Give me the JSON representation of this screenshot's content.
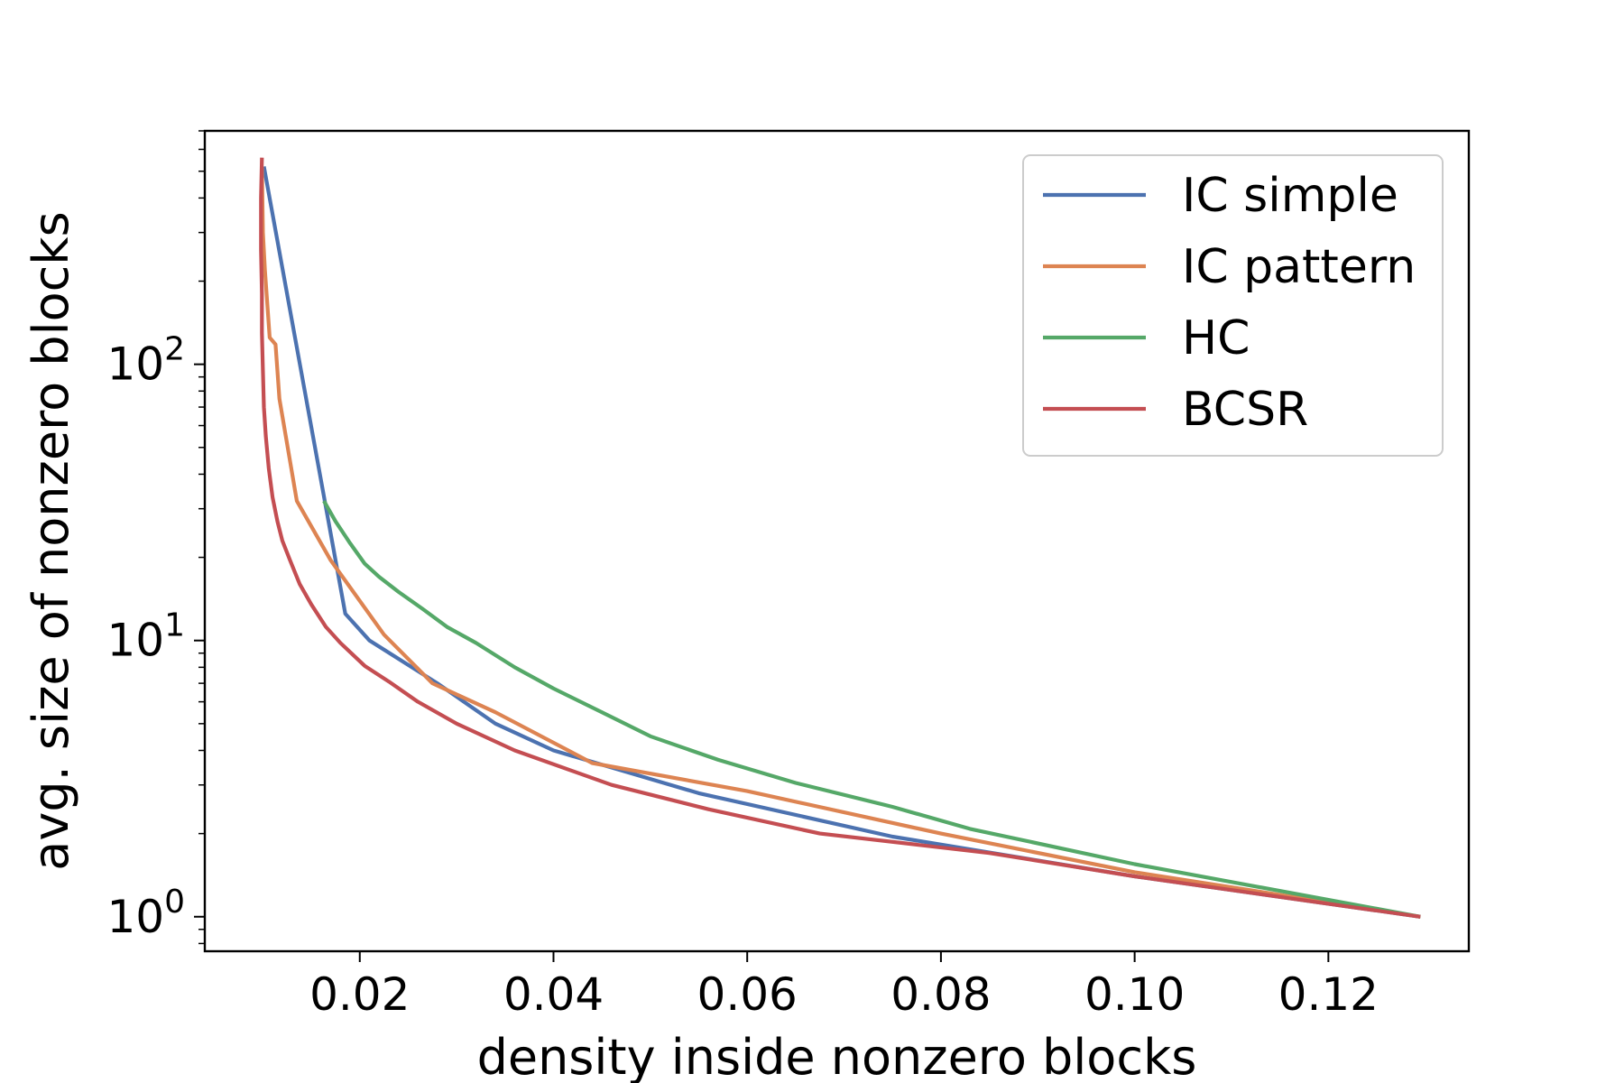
{
  "chart_data": {
    "type": "line",
    "title": "",
    "xlabel": "density inside nonzero blocks",
    "ylabel": "avg. size of nonzero blocks",
    "xscale": "linear",
    "yscale": "log",
    "xlim": [
      0.004,
      0.1345
    ],
    "ylim": [
      0.75,
      700
    ],
    "x_ticks": [
      {
        "value": 0.02,
        "label": "0.02"
      },
      {
        "value": 0.04,
        "label": "0.04"
      },
      {
        "value": 0.06,
        "label": "0.06"
      },
      {
        "value": 0.08,
        "label": "0.08"
      },
      {
        "value": 0.1,
        "label": "0.10"
      },
      {
        "value": 0.12,
        "label": "0.12"
      }
    ],
    "y_ticks": [
      {
        "value": 1,
        "base": "10",
        "exp": "0"
      },
      {
        "value": 10,
        "base": "10",
        "exp": "1"
      },
      {
        "value": 100,
        "base": "10",
        "exp": "2"
      }
    ],
    "grid": false,
    "legend_position": "top-right",
    "series": [
      {
        "name": "IC simple",
        "color": "#4c72b0",
        "points": [
          [
            0.0101,
            520
          ],
          [
            0.0185,
            12.5
          ],
          [
            0.021,
            10
          ],
          [
            0.028,
            7
          ],
          [
            0.034,
            5
          ],
          [
            0.04,
            4
          ],
          [
            0.055,
            2.8
          ],
          [
            0.075,
            1.95
          ],
          [
            0.1,
            1.4
          ],
          [
            0.1295,
            1.0
          ]
        ]
      },
      {
        "name": "IC pattern",
        "color": "#dd8452",
        "points": [
          [
            0.0099,
            520
          ],
          [
            0.01,
            300
          ],
          [
            0.0102,
            220
          ],
          [
            0.0107,
            125
          ],
          [
            0.0113,
            118
          ],
          [
            0.0117,
            75
          ],
          [
            0.0135,
            32
          ],
          [
            0.017,
            19.5
          ],
          [
            0.0225,
            10.5
          ],
          [
            0.0275,
            7.0
          ],
          [
            0.034,
            5.5
          ],
          [
            0.044,
            3.6
          ],
          [
            0.06,
            2.85
          ],
          [
            0.08,
            2.0
          ],
          [
            0.1,
            1.45
          ],
          [
            0.1295,
            1.0
          ]
        ]
      },
      {
        "name": "HC",
        "color": "#55a868",
        "points": [
          [
            0.0163,
            32
          ],
          [
            0.0175,
            27
          ],
          [
            0.019,
            22.5
          ],
          [
            0.0205,
            19
          ],
          [
            0.022,
            17
          ],
          [
            0.024,
            15
          ],
          [
            0.0265,
            13
          ],
          [
            0.029,
            11.2
          ],
          [
            0.032,
            9.8
          ],
          [
            0.036,
            8.0
          ],
          [
            0.04,
            6.7
          ],
          [
            0.045,
            5.5
          ],
          [
            0.05,
            4.5
          ],
          [
            0.057,
            3.7
          ],
          [
            0.065,
            3.05
          ],
          [
            0.075,
            2.5
          ],
          [
            0.083,
            2.08
          ],
          [
            0.1,
            1.55
          ],
          [
            0.1295,
            1.0
          ]
        ]
      },
      {
        "name": "BCSR",
        "color": "#c44e52",
        "points": [
          [
            0.0099,
            560
          ],
          [
            0.0098,
            400
          ],
          [
            0.0098,
            260
          ],
          [
            0.0099,
            180
          ],
          [
            0.0099,
            130
          ],
          [
            0.01,
            95
          ],
          [
            0.0101,
            70
          ],
          [
            0.0103,
            55
          ],
          [
            0.0106,
            42
          ],
          [
            0.011,
            33
          ],
          [
            0.0115,
            27
          ],
          [
            0.012,
            23
          ],
          [
            0.0128,
            19.5
          ],
          [
            0.0138,
            16
          ],
          [
            0.015,
            13.5
          ],
          [
            0.0165,
            11.2
          ],
          [
            0.018,
            9.8
          ],
          [
            0.0205,
            8.1
          ],
          [
            0.023,
            7.1
          ],
          [
            0.026,
            6.0
          ],
          [
            0.03,
            5.0
          ],
          [
            0.036,
            4.0
          ],
          [
            0.046,
            3.0
          ],
          [
            0.056,
            2.45
          ],
          [
            0.0675,
            2.0
          ],
          [
            0.085,
            1.7
          ],
          [
            0.1,
            1.4
          ],
          [
            0.1295,
            1.0
          ]
        ]
      }
    ]
  }
}
